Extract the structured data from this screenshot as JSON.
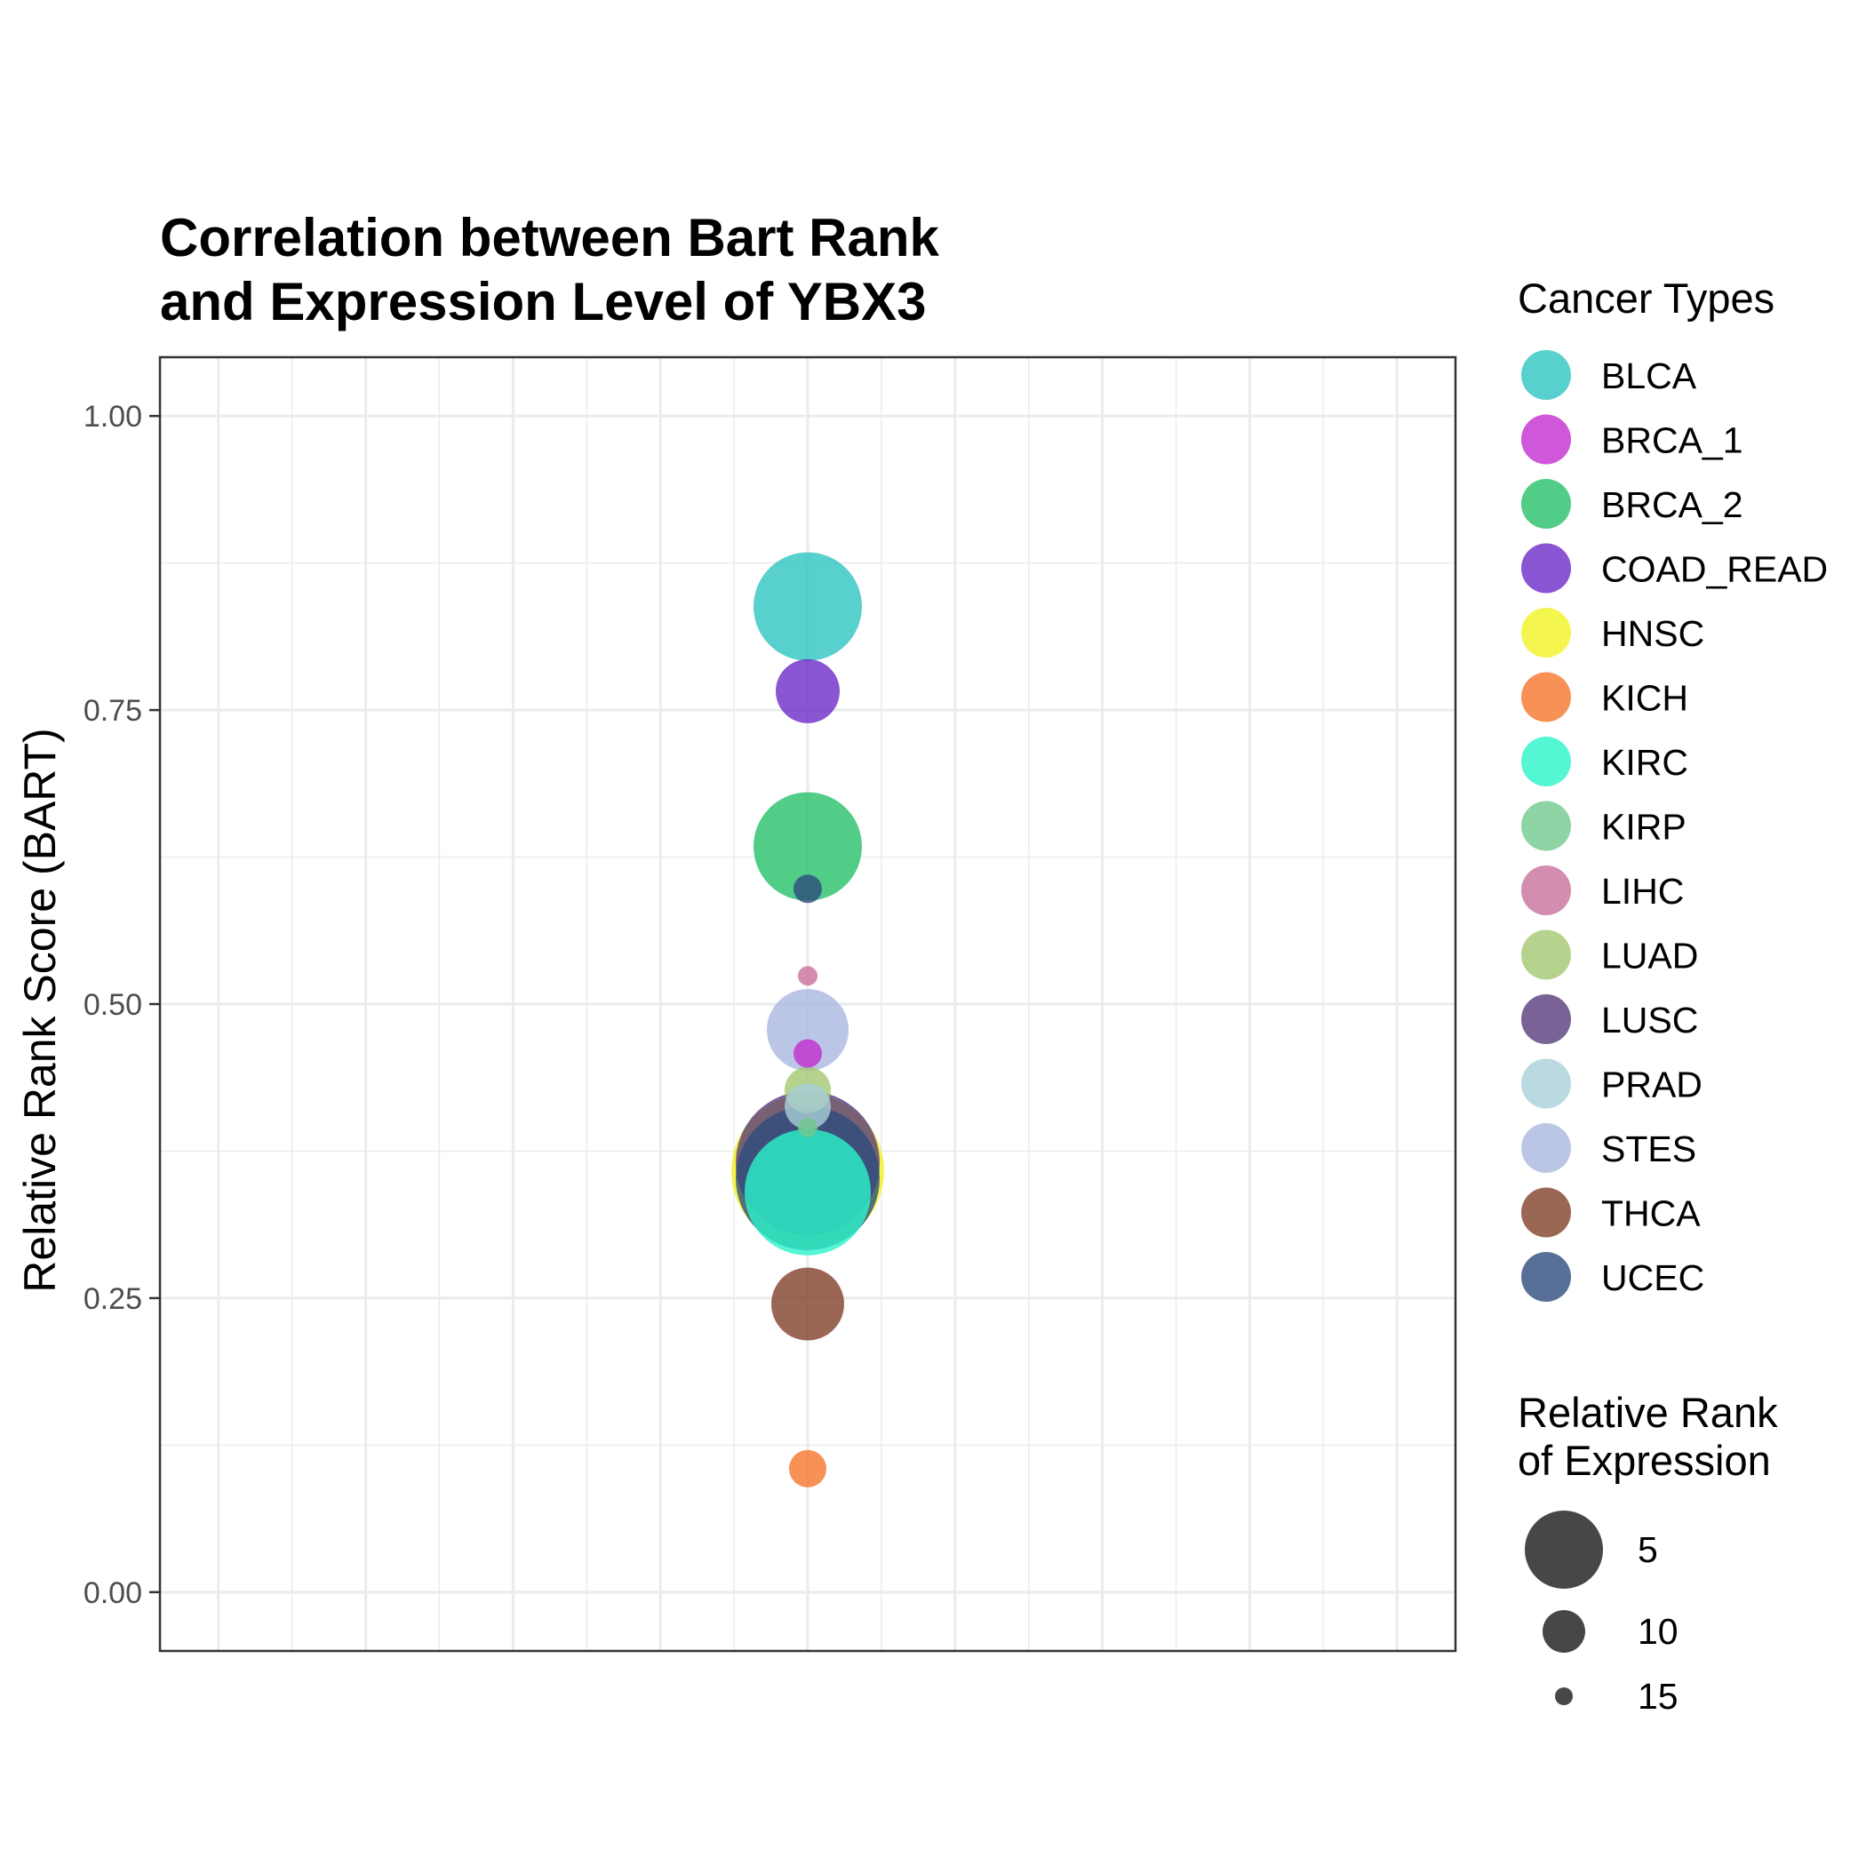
{
  "chart_data": {
    "type": "scatter",
    "title_lines": [
      "Correlation between Bart Rank",
      "and Expression Level of YBX3"
    ],
    "xlabel": "",
    "ylabel": "Relative Rank Score (BART)",
    "ylim": [
      -0.05,
      1.05
    ],
    "yticks": [
      {
        "value": 0.0,
        "label": "0.00"
      },
      {
        "value": 0.25,
        "label": "0.25"
      },
      {
        "value": 0.5,
        "label": "0.50"
      },
      {
        "value": 0.75,
        "label": "0.75"
      },
      {
        "value": 1.0,
        "label": "1.00"
      }
    ],
    "grid": true,
    "color_legend_title": "Cancer Types",
    "size_legend_title_lines": [
      "Relative Rank",
      "of Expression"
    ],
    "size_legend": [
      {
        "label": "5",
        "rank": 5
      },
      {
        "label": "10",
        "rank": 10
      },
      {
        "label": "15",
        "rank": 15
      }
    ],
    "series": [
      {
        "name": "BLCA",
        "color": "#2EC4C0",
        "y": 0.838,
        "rank": 6
      },
      {
        "name": "BRCA_1",
        "color": "#C32DCF",
        "y": 0.458,
        "rank": 15
      },
      {
        "name": "BRCA_2",
        "color": "#25C06A",
        "y": 0.634,
        "rank": 6
      },
      {
        "name": "COAD_READ",
        "color": "#6B2AC7",
        "y": 0.766,
        "rank": 11
      },
      {
        "name": "HNSC",
        "color": "#F3F323",
        "y": 0.358,
        "rank": 1
      },
      {
        "name": "KICH",
        "color": "#F6762C",
        "y": 0.105,
        "rank": 14
      },
      {
        "name": "KIRC",
        "color": "#2AF4C9",
        "y": 0.34,
        "rank": 4
      },
      {
        "name": "KIRP",
        "color": "#72C98D",
        "y": 0.395,
        "rank": 16
      },
      {
        "name": "LIHC",
        "color": "#C8709A",
        "y": 0.524,
        "rank": 16
      },
      {
        "name": "LUAD",
        "color": "#A2C870",
        "y": 0.427,
        "rank": 13
      },
      {
        "name": "LUSC",
        "color": "#573B7A",
        "y": 0.365,
        "rank": 2
      },
      {
        "name": "PRAD",
        "color": "#A9D0DA",
        "y": 0.413,
        "rank": 13
      },
      {
        "name": "STES",
        "color": "#AAB8E0",
        "y": 0.478,
        "rank": 9
      },
      {
        "name": "THCA",
        "color": "#81412A",
        "y": 0.245,
        "rank": 10
      },
      {
        "name": "UCEC",
        "color": "#2E4C7D",
        "y": 0.598,
        "rank": 15
      }
    ],
    "extra_points": [
      {
        "color": "#2E4C7D",
        "y": 0.352,
        "rank": 2
      }
    ]
  }
}
